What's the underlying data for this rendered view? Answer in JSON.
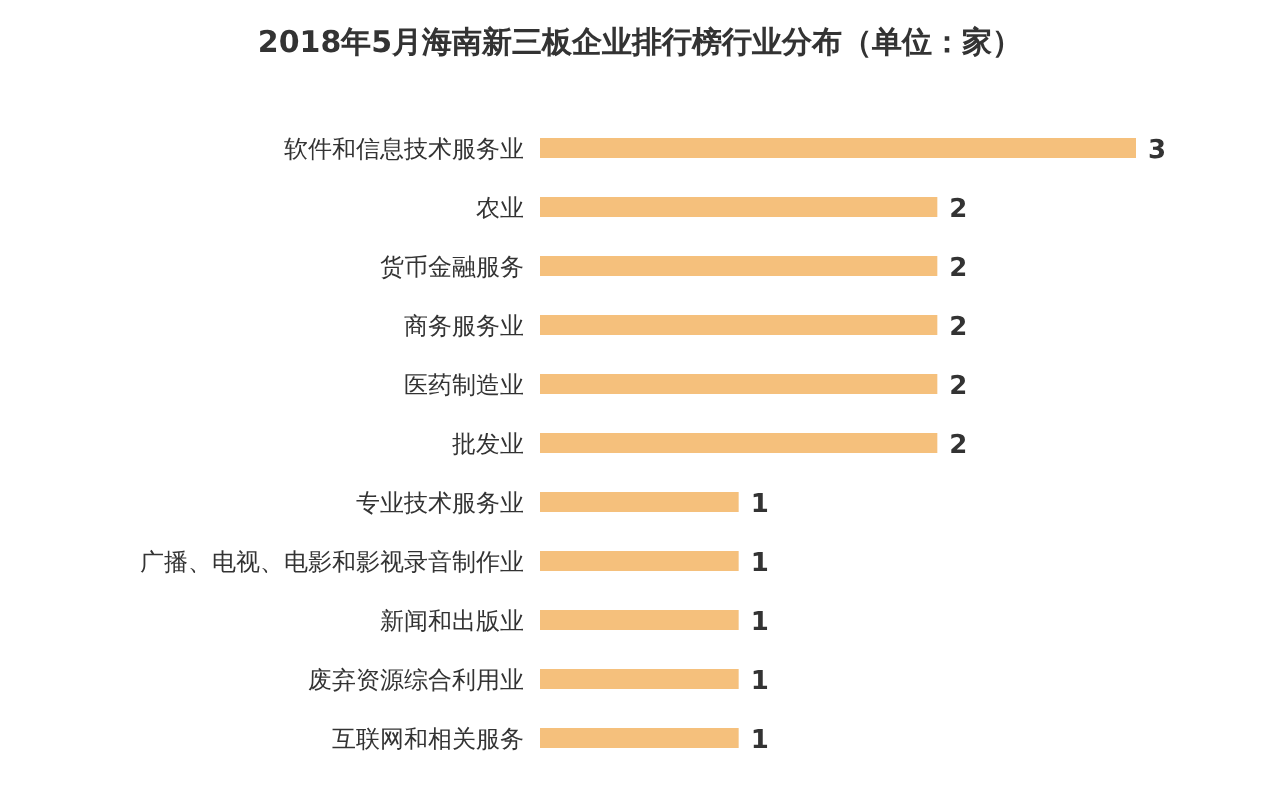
{
  "chart_data": {
    "type": "bar",
    "orientation": "horizontal",
    "title": "2018年5月海南新三板企业排行榜行业分布（单位：家）",
    "categories": [
      "软件和信息技术服务业",
      "农业",
      "货币金融服务",
      "商务服务业",
      "医药制造业",
      "批发业",
      "专业技术服务业",
      "广播、电视、电影和影视录音制作业",
      "新闻和出版业",
      "废弃资源综合利用业",
      "互联网和相关服务"
    ],
    "values": [
      3,
      2,
      2,
      2,
      2,
      2,
      1,
      1,
      1,
      1,
      1
    ],
    "color": "#f5c07c",
    "data_labels": true
  }
}
